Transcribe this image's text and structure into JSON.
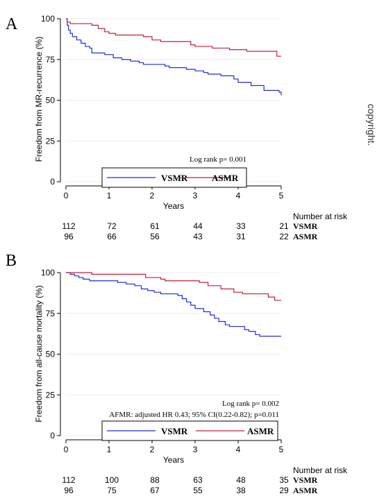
{
  "side_text": "copyright.",
  "risk_header": "Number at risk",
  "chart_data": [
    {
      "panel": "A",
      "type": "line",
      "ylabel": "Freedom from MR-recurrence (%)",
      "xlabel": "Years",
      "xlim": [
        0,
        5
      ],
      "ylim": [
        0,
        100
      ],
      "xticks": [
        0,
        1,
        2,
        3,
        4,
        5
      ],
      "yticks": [
        0,
        25,
        50,
        75,
        100
      ],
      "annotations": [
        "Log rank p= 0.001"
      ],
      "legend": [
        "VSMR",
        "ASMR"
      ],
      "colors": {
        "VSMR": "#1f2fd6",
        "ASMR": "#c21f3a"
      },
      "series": [
        {
          "name": "VSMR",
          "points": [
            [
              0,
              100
            ],
            [
              0.03,
              96
            ],
            [
              0.06,
              93
            ],
            [
              0.1,
              91
            ],
            [
              0.15,
              89
            ],
            [
              0.25,
              87
            ],
            [
              0.35,
              85
            ],
            [
              0.45,
              83
            ],
            [
              0.55,
              82
            ],
            [
              0.6,
              79
            ],
            [
              0.9,
              78
            ],
            [
              1.1,
              76
            ],
            [
              1.3,
              75
            ],
            [
              1.5,
              74
            ],
            [
              1.7,
              73
            ],
            [
              1.8,
              72
            ],
            [
              2.3,
              71
            ],
            [
              2.4,
              70
            ],
            [
              2.8,
              69
            ],
            [
              3.0,
              68
            ],
            [
              3.2,
              67
            ],
            [
              3.3,
              66
            ],
            [
              3.6,
              65
            ],
            [
              3.9,
              63
            ],
            [
              4.0,
              61
            ],
            [
              4.3,
              59
            ],
            [
              4.6,
              56
            ],
            [
              4.95,
              55
            ],
            [
              5.0,
              53
            ]
          ]
        },
        {
          "name": "ASMR",
          "points": [
            [
              0,
              100
            ],
            [
              0.03,
              98
            ],
            [
              0.1,
              97
            ],
            [
              0.6,
              96
            ],
            [
              0.75,
              94
            ],
            [
              0.9,
              92
            ],
            [
              1.0,
              91
            ],
            [
              1.15,
              90
            ],
            [
              1.8,
              89
            ],
            [
              2.0,
              87
            ],
            [
              2.2,
              86
            ],
            [
              2.9,
              84
            ],
            [
              3.0,
              83
            ],
            [
              3.4,
              82
            ],
            [
              3.8,
              81
            ],
            [
              4.2,
              80
            ],
            [
              4.7,
              80
            ],
            [
              4.9,
              77
            ],
            [
              5.0,
              77
            ]
          ]
        }
      ],
      "risk_table": [
        {
          "name": "VSMR",
          "values": [
            112,
            72,
            61,
            44,
            33,
            21
          ]
        },
        {
          "name": "ASMR",
          "values": [
            96,
            66,
            56,
            43,
            31,
            22
          ]
        }
      ]
    },
    {
      "panel": "B",
      "type": "line",
      "ylabel": "Freedom from all-cause mortality (%)",
      "xlabel": "Years",
      "xlim": [
        0,
        5
      ],
      "ylim": [
        0,
        100
      ],
      "xticks": [
        0,
        1,
        2,
        3,
        4,
        5
      ],
      "yticks": [
        0,
        25,
        50,
        75,
        100
      ],
      "annotations": [
        "Log rank p= 0.002",
        "AFMR: adjusted HR 0.43; 95% CI(0.22-0.82); p=0.011"
      ],
      "legend": [
        "VSMR",
        "ASMR"
      ],
      "colors": {
        "VSMR": "#1f2fd6",
        "ASMR": "#c21f3a"
      },
      "series": [
        {
          "name": "VSMR",
          "points": [
            [
              0,
              100
            ],
            [
              0.1,
              99
            ],
            [
              0.2,
              98
            ],
            [
              0.3,
              97
            ],
            [
              0.4,
              96
            ],
            [
              0.55,
              95
            ],
            [
              1.0,
              95
            ],
            [
              1.2,
              94
            ],
            [
              1.4,
              93
            ],
            [
              1.6,
              92
            ],
            [
              1.75,
              90
            ],
            [
              1.9,
              89
            ],
            [
              2.05,
              88
            ],
            [
              2.2,
              87
            ],
            [
              2.6,
              86
            ],
            [
              2.7,
              84
            ],
            [
              2.8,
              82
            ],
            [
              2.9,
              80
            ],
            [
              3.0,
              78
            ],
            [
              3.2,
              76
            ],
            [
              3.35,
              74
            ],
            [
              3.45,
              72
            ],
            [
              3.55,
              70
            ],
            [
              3.7,
              68
            ],
            [
              3.8,
              67
            ],
            [
              4.15,
              65
            ],
            [
              4.25,
              64
            ],
            [
              4.4,
              62
            ],
            [
              4.5,
              61
            ],
            [
              5.0,
              61
            ]
          ]
        },
        {
          "name": "ASMR",
          "points": [
            [
              0,
              100
            ],
            [
              0.55,
              100
            ],
            [
              0.6,
              99
            ],
            [
              1.8,
              99
            ],
            [
              1.85,
              97
            ],
            [
              2.2,
              96
            ],
            [
              2.3,
              95
            ],
            [
              3.1,
              94
            ],
            [
              3.3,
              92
            ],
            [
              3.6,
              90
            ],
            [
              3.9,
              88
            ],
            [
              4.1,
              87
            ],
            [
              4.7,
              85
            ],
            [
              4.85,
              83
            ],
            [
              5.0,
              83
            ]
          ]
        }
      ],
      "risk_table": [
        {
          "name": "VSMR",
          "values": [
            112,
            100,
            88,
            63,
            48,
            35
          ]
        },
        {
          "name": "ASMR",
          "values": [
            96,
            75,
            67,
            55,
            38,
            29
          ]
        }
      ]
    }
  ]
}
